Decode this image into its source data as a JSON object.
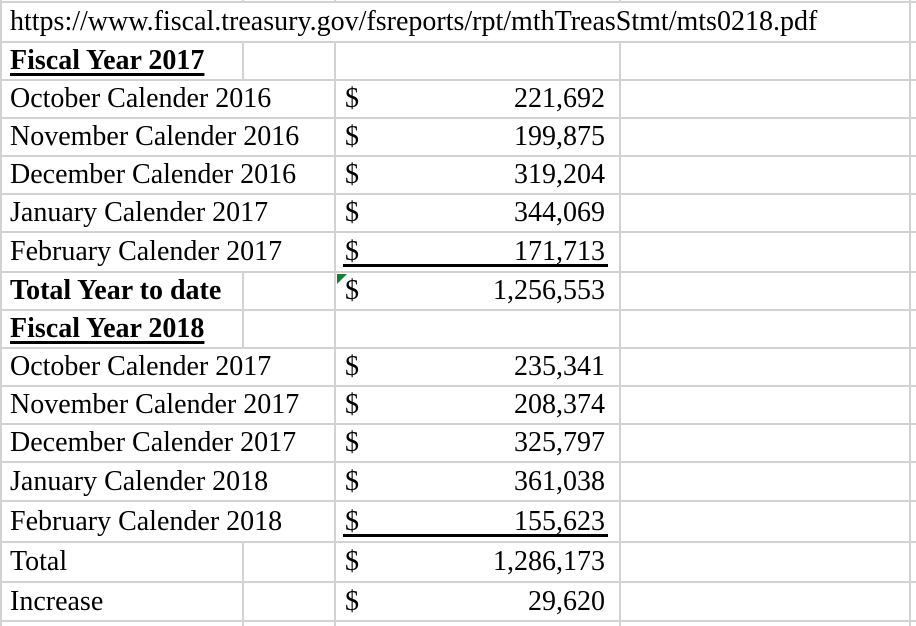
{
  "colors": {
    "grid": "#d2d2d2",
    "text": "#000000",
    "background": "#ffffff",
    "error_indicator_green": "#1c7c2c",
    "accounting_underline": "#000000"
  },
  "spreadsheet": {
    "source_url_cell": "https://www.fiscal.treasury.gov/fsreports/rpt/mthTreasStmt/mts0218.pdf",
    "rows": [
      {
        "style": "url",
        "label": "https://www.fiscal.treasury.gov/fsreports/rpt/mthTreasStmt/mts0218.pdf"
      },
      {
        "style": "section",
        "label": "Fiscal Year 2017"
      },
      {
        "style": "month",
        "label": "October Calender 2016",
        "currency": "$",
        "amount": "221,692"
      },
      {
        "style": "month",
        "label": "November Calender 2016",
        "currency": "$",
        "amount": "199,875"
      },
      {
        "style": "month",
        "label": "December Calender 2016",
        "currency": "$",
        "amount": "319,204"
      },
      {
        "style": "month",
        "label": "January Calender 2017",
        "currency": "$",
        "amount": "344,069"
      },
      {
        "style": "month",
        "label": "February Calender 2017",
        "currency": "$",
        "amount": "171,713",
        "accounting_underline": true
      },
      {
        "style": "total",
        "label": "Total Year to date",
        "bold_label": true,
        "currency": "$",
        "amount": "1,256,553",
        "error_indicator": true
      },
      {
        "style": "section",
        "label": "Fiscal Year 2018"
      },
      {
        "style": "month",
        "label": "October Calender 2017",
        "currency": "$",
        "amount": "235,341"
      },
      {
        "style": "month",
        "label": "November Calender 2017",
        "currency": "$",
        "amount": "208,374"
      },
      {
        "style": "month",
        "label": "December Calender 2017",
        "currency": "$",
        "amount": "325,797"
      },
      {
        "style": "month",
        "label": "January Calender 2018",
        "currency": "$",
        "amount": "361,038"
      },
      {
        "style": "month",
        "label": "February Calender 2018",
        "currency": "$",
        "amount": "155,623",
        "accounting_underline": true
      },
      {
        "style": "total",
        "label": "Total",
        "currency": "$",
        "amount": "1,286,173"
      },
      {
        "style": "total",
        "label": "Increase",
        "currency": "$",
        "amount": "29,620"
      }
    ]
  }
}
